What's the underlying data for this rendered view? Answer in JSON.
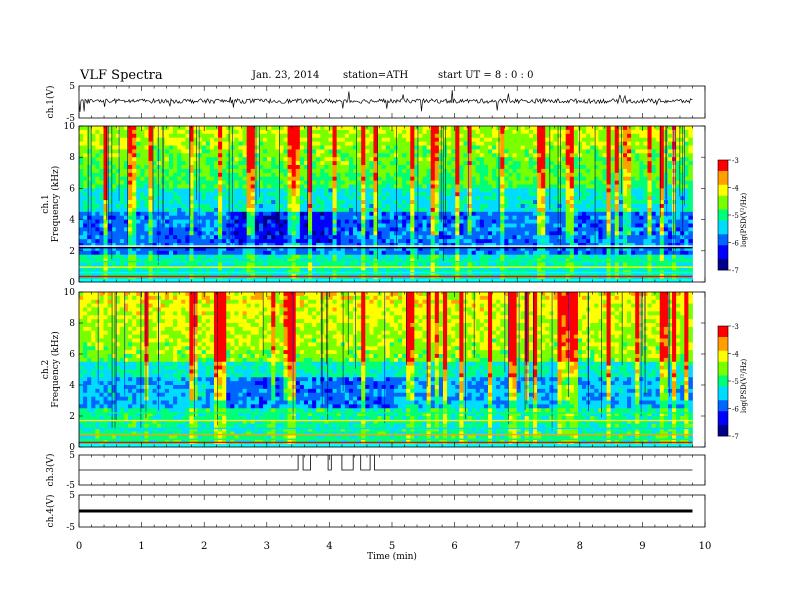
{
  "header": {
    "title": "VLF  Spectra",
    "date": "Jan. 23, 2014",
    "station": "station=ATH",
    "start_ut": "start  UT  =   8 : 0  : 0"
  },
  "x_axis": {
    "label": "Time  (min)",
    "ticks": [
      "0",
      "1",
      "2",
      "3",
      "4",
      "5",
      "6",
      "7",
      "8",
      "9",
      "10"
    ],
    "range": [
      0,
      10
    ]
  },
  "panels": {
    "ch1_wave": {
      "label": "ch.1(V)",
      "ticks": [
        "5",
        "-5"
      ]
    },
    "ch1_spec": {
      "label1": "ch.1",
      "label2": "Frequency  (kHz)",
      "ticks": [
        "10",
        "8",
        "6",
        "4",
        "2",
        "0"
      ]
    },
    "ch2_spec": {
      "label1": "ch.2",
      "label2": "Frequency  (kHz)",
      "ticks": [
        "10",
        "8",
        "6",
        "4",
        "2",
        "0"
      ]
    },
    "ch3_wave": {
      "label": "ch.3(V)",
      "ticks": [
        "5",
        "-5"
      ]
    },
    "ch4_wave": {
      "label": "ch.4(V)",
      "ticks": [
        "5",
        "-5"
      ]
    }
  },
  "colorbar": {
    "label": "log(PSD(V²/Hz)",
    "ticks": [
      "-3",
      "-4",
      "-5",
      "-6",
      "-7"
    ],
    "range": [
      -7,
      -3
    ]
  },
  "chart_data": {
    "type": "heatmap",
    "title": "VLF  Spectra",
    "xlabel": "Time  (min)",
    "xlim": [
      0,
      10
    ],
    "data_end_min": 9.8,
    "series": [
      {
        "name": "ch.1(V)",
        "kind": "waveform",
        "ylim": [
          -5,
          5
        ],
        "baseline_V": 0.3
      },
      {
        "name": "ch.1",
        "kind": "spectrogram",
        "ylabel": "Frequency  (kHz)",
        "ylim": [
          0,
          10
        ],
        "zlim": [
          -7,
          -3
        ],
        "quiet_region_min": [
          2.4,
          4.2
        ],
        "quiet_band_kHz": [
          2.5,
          4.5
        ]
      },
      {
        "name": "ch.2",
        "kind": "spectrogram",
        "ylabel": "Frequency  (kHz)",
        "ylim": [
          0,
          10
        ],
        "zlim": [
          -7,
          -3
        ]
      },
      {
        "name": "ch.3(V)",
        "kind": "waveform",
        "ylim": [
          -5,
          5
        ],
        "baseline_V": 0,
        "pulses_min": [
          [
            3.5,
            3.58
          ],
          [
            3.7,
            3.98
          ],
          [
            4.03,
            4.2
          ],
          [
            4.38,
            4.5
          ],
          [
            4.65,
            4.72
          ]
        ]
      },
      {
        "name": "ch.4(V)",
        "kind": "waveform",
        "ylim": [
          -5,
          5
        ],
        "baseline_V": 0
      }
    ]
  },
  "colors": {
    "colormap": [
      "#00008a",
      "#0000ff",
      "#0064ff",
      "#00dcff",
      "#00ff78",
      "#78ff00",
      "#ffff00",
      "#ffa000",
      "#ff0000",
      "#ffffff"
    ]
  }
}
